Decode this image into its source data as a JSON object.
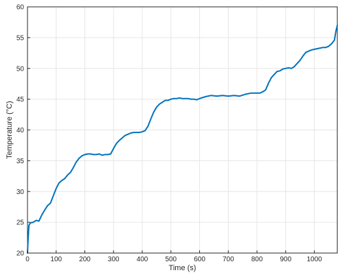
{
  "chart_data": {
    "type": "line",
    "title": "",
    "xlabel": "Time (s)",
    "ylabel": "Temperature (°C)",
    "xlim": [
      0,
      1080
    ],
    "ylim": [
      20,
      60
    ],
    "xticks": [
      0,
      100,
      200,
      300,
      400,
      500,
      600,
      700,
      800,
      900,
      1000
    ],
    "yticks": [
      20,
      25,
      30,
      35,
      40,
      45,
      50,
      55,
      60
    ],
    "grid": true,
    "legend": "none",
    "colors": {
      "line": "#0072BD",
      "grid": "#e6e6e6",
      "axis": "#262626"
    },
    "series": [
      {
        "x": [
          0,
          2,
          5,
          10,
          20,
          30,
          40,
          50,
          60,
          70,
          80,
          90,
          100,
          110,
          120,
          130,
          140,
          150,
          160,
          170,
          180,
          190,
          200,
          210,
          220,
          230,
          240,
          250,
          260,
          270,
          280,
          290,
          300,
          310,
          320,
          330,
          340,
          350,
          360,
          370,
          380,
          390,
          400,
          410,
          420,
          430,
          440,
          450,
          460,
          470,
          480,
          490,
          500,
          510,
          520,
          530,
          540,
          550,
          560,
          570,
          580,
          590,
          600,
          620,
          640,
          660,
          680,
          700,
          720,
          740,
          760,
          780,
          800,
          810,
          820,
          830,
          840,
          850,
          860,
          870,
          880,
          890,
          900,
          910,
          920,
          930,
          940,
          950,
          960,
          970,
          980,
          990,
          1000,
          1010,
          1020,
          1030,
          1040,
          1050,
          1060,
          1070,
          1075,
          1080
        ],
        "y": [
          20.0,
          22.0,
          24.5,
          24.9,
          25.0,
          25.3,
          25.2,
          26.2,
          27.0,
          27.7,
          28.1,
          29.3,
          30.5,
          31.4,
          31.8,
          32.1,
          32.7,
          33.1,
          33.9,
          34.8,
          35.4,
          35.8,
          36.0,
          36.1,
          36.1,
          36.0,
          36.0,
          36.1,
          35.9,
          36.0,
          36.0,
          36.1,
          37.0,
          37.8,
          38.3,
          38.7,
          39.1,
          39.3,
          39.5,
          39.6,
          39.6,
          39.6,
          39.7,
          39.9,
          40.6,
          41.8,
          42.9,
          43.7,
          44.2,
          44.5,
          44.8,
          44.8,
          45.0,
          45.1,
          45.1,
          45.2,
          45.1,
          45.1,
          45.1,
          45.0,
          45.0,
          44.9,
          45.1,
          45.4,
          45.6,
          45.5,
          45.6,
          45.5,
          45.6,
          45.5,
          45.8,
          46.0,
          46.0,
          46.0,
          46.2,
          46.5,
          47.6,
          48.5,
          49.0,
          49.5,
          49.6,
          49.9,
          50.0,
          50.1,
          50.0,
          50.3,
          50.8,
          51.3,
          52.0,
          52.6,
          52.8,
          53.0,
          53.1,
          53.2,
          53.3,
          53.4,
          53.4,
          53.6,
          54.0,
          54.6,
          56.0,
          57.0
        ]
      }
    ]
  }
}
